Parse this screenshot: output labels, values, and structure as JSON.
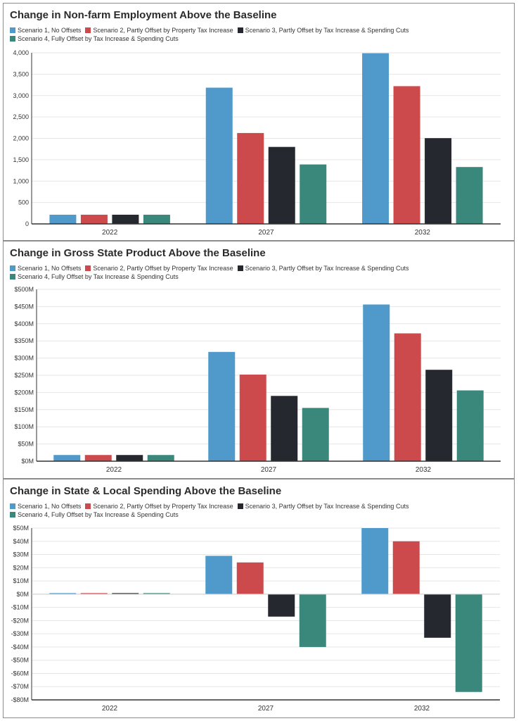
{
  "colors": [
    "#4f9acb",
    "#cc4a4c",
    "#25282e",
    "#3a877b"
  ],
  "chart_data": [
    {
      "type": "bar",
      "title": "Change in Non-farm Employment Above the Baseline",
      "categories": [
        "2022",
        "2027",
        "2032"
      ],
      "series": [
        {
          "name": "Scenario 1, No Offsets",
          "values": [
            215,
            3185,
            3990
          ]
        },
        {
          "name": "Scenario 2, Partly Offset by Property Tax Increase",
          "values": [
            215,
            2125,
            3220
          ]
        },
        {
          "name": "Scenario 3, Partly Offset by Tax Increase & Spending Cuts",
          "values": [
            215,
            1800,
            2005
          ]
        },
        {
          "name": "Scenario 4, Fully Offset by Tax Increase & Spending Cuts",
          "values": [
            215,
            1390,
            1330
          ]
        }
      ],
      "ylim": [
        0,
        4000
      ],
      "yticks": [
        0,
        500,
        1000,
        1500,
        2000,
        2500,
        3000,
        3500,
        4000
      ],
      "ytick_labels": [
        "0",
        "500",
        "1,000",
        "1,500",
        "2,000",
        "2,500",
        "3,000",
        "3,500",
        "4,000"
      ],
      "grid": true,
      "legend_position": "top-left"
    },
    {
      "type": "bar",
      "title": "Change in Gross State Product Above the Baseline",
      "categories": [
        "2022",
        "2027",
        "2032"
      ],
      "series": [
        {
          "name": "Scenario 1, No Offsets",
          "values": [
            18,
            318,
            456
          ]
        },
        {
          "name": "Scenario 2, Partly Offset by Property Tax Increase",
          "values": [
            18,
            252,
            372
          ]
        },
        {
          "name": "Scenario 3, Partly Offset by Tax Increase & Spending Cuts",
          "values": [
            18,
            190,
            266
          ]
        },
        {
          "name": "Scenario 4, Fully Offset by Tax Increase & Spending Cuts",
          "values": [
            18,
            155,
            206
          ]
        }
      ],
      "ylim": [
        0,
        500
      ],
      "yticks": [
        0,
        50,
        100,
        150,
        200,
        250,
        300,
        350,
        400,
        450,
        500
      ],
      "ytick_labels": [
        "$0M",
        "$50M",
        "$100M",
        "$150M",
        "$200M",
        "$250M",
        "$300M",
        "$350M",
        "$400M",
        "$450M",
        "$500M"
      ],
      "grid": true,
      "legend_position": "top-left"
    },
    {
      "type": "bar",
      "title": "Change in State & Local Spending Above the Baseline",
      "categories": [
        "2022",
        "2027",
        "2032"
      ],
      "series": [
        {
          "name": "Scenario 1, No Offsets",
          "values": [
            0.8,
            29,
            50
          ]
        },
        {
          "name": "Scenario 2, Partly Offset by Property Tax Increase",
          "values": [
            0.8,
            24,
            40
          ]
        },
        {
          "name": "Scenario 3, Partly Offset by Tax Increase & Spending Cuts",
          "values": [
            0.8,
            -17,
            -33
          ]
        },
        {
          "name": "Scenario 4, Fully Offset by Tax Increase & Spending Cuts",
          "values": [
            0.8,
            -40,
            -74
          ]
        }
      ],
      "ylim": [
        -80,
        50
      ],
      "yticks": [
        -80,
        -70,
        -60,
        -50,
        -40,
        -30,
        -20,
        -10,
        0,
        10,
        20,
        30,
        40,
        50
      ],
      "ytick_labels": [
        "-$80M",
        "-$70M",
        "-$60M",
        "-$50M",
        "-$40M",
        "-$30M",
        "-$20M",
        "-$10M",
        "$0M",
        "$10M",
        "$20M",
        "$30M",
        "$40M",
        "$50M"
      ],
      "grid": true,
      "legend_position": "top-left"
    }
  ]
}
